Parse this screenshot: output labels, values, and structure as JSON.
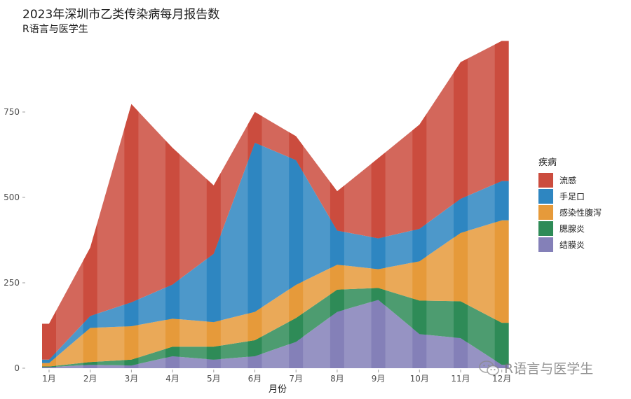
{
  "chart_data": {
    "type": "area",
    "title": "2023年深圳市乙类传染病每月报告数",
    "subtitle": "R语言与医学生",
    "xlabel": "月份",
    "ylabel": "",
    "categories": [
      "1月",
      "2月",
      "3月",
      "4月",
      "5月",
      "6月",
      "7月",
      "8月",
      "9月",
      "10月",
      "11月",
      "12月"
    ],
    "y_ticks": [
      0,
      250,
      500,
      750
    ],
    "ylim": [
      0,
      960
    ],
    "stack_order_bottom_to_top": [
      "结膜炎",
      "腮腺炎",
      "感染性腹泻",
      "手足口",
      "流感"
    ],
    "series": [
      {
        "name": "结膜炎",
        "color": "#8480B8",
        "values": [
          3,
          10,
          8,
          35,
          25,
          35,
          77,
          165,
          200,
          100,
          88,
          10
        ]
      },
      {
        "name": "腮腺炎",
        "color": "#2E8B57",
        "values": [
          2,
          8,
          17,
          28,
          38,
          47,
          70,
          65,
          35,
          98,
          108,
          123
        ]
      },
      {
        "name": "感染性腹泻",
        "color": "#E69A3A",
        "values": [
          10,
          100,
          98,
          82,
          72,
          83,
          97,
          73,
          55,
          115,
          200,
          300
        ]
      },
      {
        "name": "手足口",
        "color": "#2E86C1",
        "values": [
          10,
          35,
          70,
          100,
          200,
          495,
          365,
          100,
          90,
          95,
          100,
          115
        ]
      },
      {
        "name": "流感",
        "color": "#CB4C3E",
        "values": [
          105,
          200,
          580,
          400,
          200,
          90,
          70,
          115,
          235,
          305,
          400,
          410
        ]
      }
    ],
    "legend": {
      "title": "疾病",
      "position": "right",
      "order": [
        "流感",
        "手足口",
        "感染性腹泻",
        "腮腺炎",
        "结膜炎"
      ]
    },
    "grid": false
  },
  "watermark": {
    "text": "R语言与医学生",
    "icon": "wechat-icon"
  }
}
